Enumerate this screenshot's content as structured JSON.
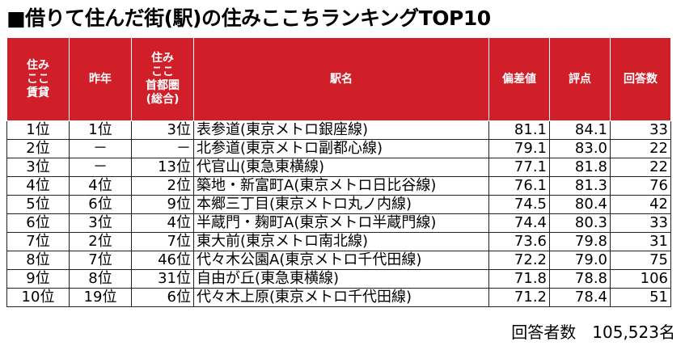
{
  "title": "■借りて住んだ街(駅)の住みここちランキングTOP10",
  "headers": {
    "rank": "住み\nここ\n賃貸",
    "last_year": "昨年",
    "metro_rank": "住み\nここ\n首都圏\n(総合)",
    "station": "駅名",
    "deviation": "偏差値",
    "score": "評点",
    "respondents": "回答数"
  },
  "rows": [
    {
      "rank": "1位",
      "last_year": "1位",
      "metro_rank": "3位",
      "station": "表参道(東京メトロ銀座線)",
      "deviation": "81.1",
      "score": "84.1",
      "respondents": "33"
    },
    {
      "rank": "2位",
      "last_year": "－",
      "metro_rank": "－",
      "station": "北参道(東京メトロ副都心線)",
      "deviation": "79.1",
      "score": "83.0",
      "respondents": "22"
    },
    {
      "rank": "3位",
      "last_year": "－",
      "metro_rank": "13位",
      "station": "代官山(東急東横線)",
      "deviation": "77.1",
      "score": "81.8",
      "respondents": "22"
    },
    {
      "rank": "4位",
      "last_year": "4位",
      "metro_rank": "2位",
      "station": "築地・新富町A(東京メトロ日比谷線)",
      "deviation": "76.1",
      "score": "81.3",
      "respondents": "76"
    },
    {
      "rank": "5位",
      "last_year": "6位",
      "metro_rank": "9位",
      "station": "本郷三丁目(東京メトロ丸ノ内線)",
      "deviation": "74.5",
      "score": "80.4",
      "respondents": "42"
    },
    {
      "rank": "6位",
      "last_year": "3位",
      "metro_rank": "4位",
      "station": "半蔵門・麹町A(東京メトロ半蔵門線)",
      "deviation": "74.4",
      "score": "80.3",
      "respondents": "33"
    },
    {
      "rank": "7位",
      "last_year": "2位",
      "metro_rank": "7位",
      "station": "東大前(東京メトロ南北線)",
      "deviation": "73.6",
      "score": "79.8",
      "respondents": "31"
    },
    {
      "rank": "8位",
      "last_year": "7位",
      "metro_rank": "46位",
      "station": "代々木公園A(東京メトロ千代田線)",
      "deviation": "72.2",
      "score": "79.0",
      "respondents": "75"
    },
    {
      "rank": "9位",
      "last_year": "8位",
      "metro_rank": "31位",
      "station": "自由が丘(東急東横線)",
      "deviation": "71.8",
      "score": "78.8",
      "respondents": "106"
    },
    {
      "rank": "10位",
      "last_year": "19位",
      "metro_rank": "6位",
      "station": "代々木上原(東京メトロ千代田線)",
      "deviation": "71.2",
      "score": "78.4",
      "respondents": "51"
    }
  ],
  "footer": "回答者数　105,523名",
  "colors": {
    "header_bg": "#d11f2a",
    "header_text": "#ffffff",
    "border": "#222222"
  }
}
